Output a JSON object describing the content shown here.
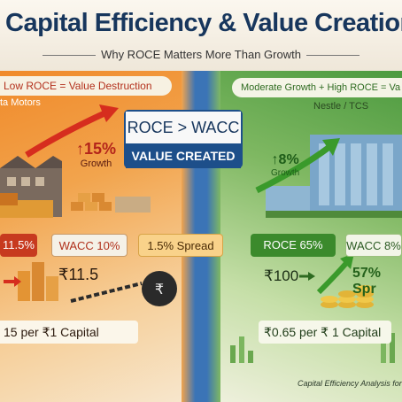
{
  "header": {
    "title": "Capital Efficiency & Value Creation",
    "subtitle": "Why ROCE Matters More Than Growth"
  },
  "left_panel": {
    "banner": "Low ROCE = Value Destruction",
    "company": "ta Motors",
    "growth_pct": "15%",
    "growth_label": "Growth",
    "roce_chip": "11.5%",
    "wacc_chip": "WACC 10%",
    "value": "₹11.5",
    "footer": "15 per ₹1 Capital",
    "color": "#f08a2a"
  },
  "center": {
    "formula": "ROCE > WACC",
    "result": "VALUE CREATED",
    "spread_chip": "1.5% Spread"
  },
  "right_panel": {
    "banner": "Moderate Growth + High ROCE = Va",
    "company": "Nestle / TCS",
    "growth_pct": "8%",
    "growth_label": "Growth",
    "roce_chip": "ROCE 65%",
    "wacc_chip": "WACC 8%",
    "value": "₹100",
    "spread_pct": "57% Spr",
    "footer": "₹0.65 per ₹ 1 Capital",
    "color": "#4c9a3f"
  },
  "caption": "Capital Efficiency Analysis for I",
  "icons": [
    "up-arrow-icon",
    "rupee-ball-chain-icon",
    "factory-icon",
    "office-building-icon",
    "coin-stack-icon",
    "bar-chart-icon"
  ]
}
